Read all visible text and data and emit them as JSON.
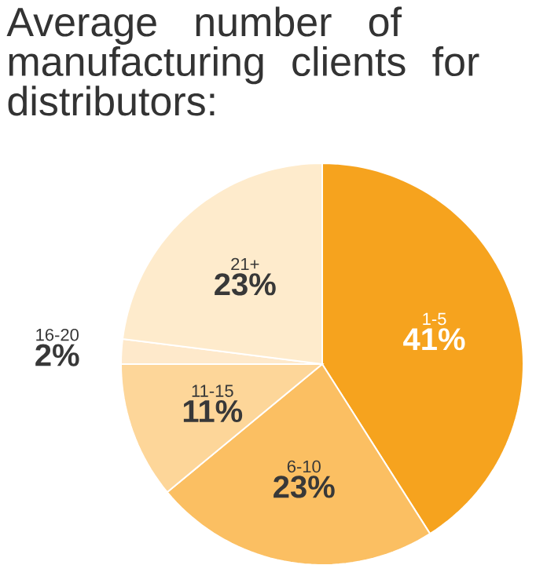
{
  "chart_data": {
    "type": "pie",
    "title": "Average number of manufacturing clients for distributors:",
    "categories": [
      "1-5",
      "6-10",
      "11-15",
      "16-20",
      "21+"
    ],
    "values": [
      41,
      23,
      11,
      2,
      23
    ],
    "value_labels": [
      "41%",
      "23%",
      "11%",
      "2%",
      "23%"
    ],
    "colors": [
      "#f6a31e",
      "#fbbf62",
      "#fdd699",
      "#fee9cb",
      "#feebcc"
    ]
  }
}
